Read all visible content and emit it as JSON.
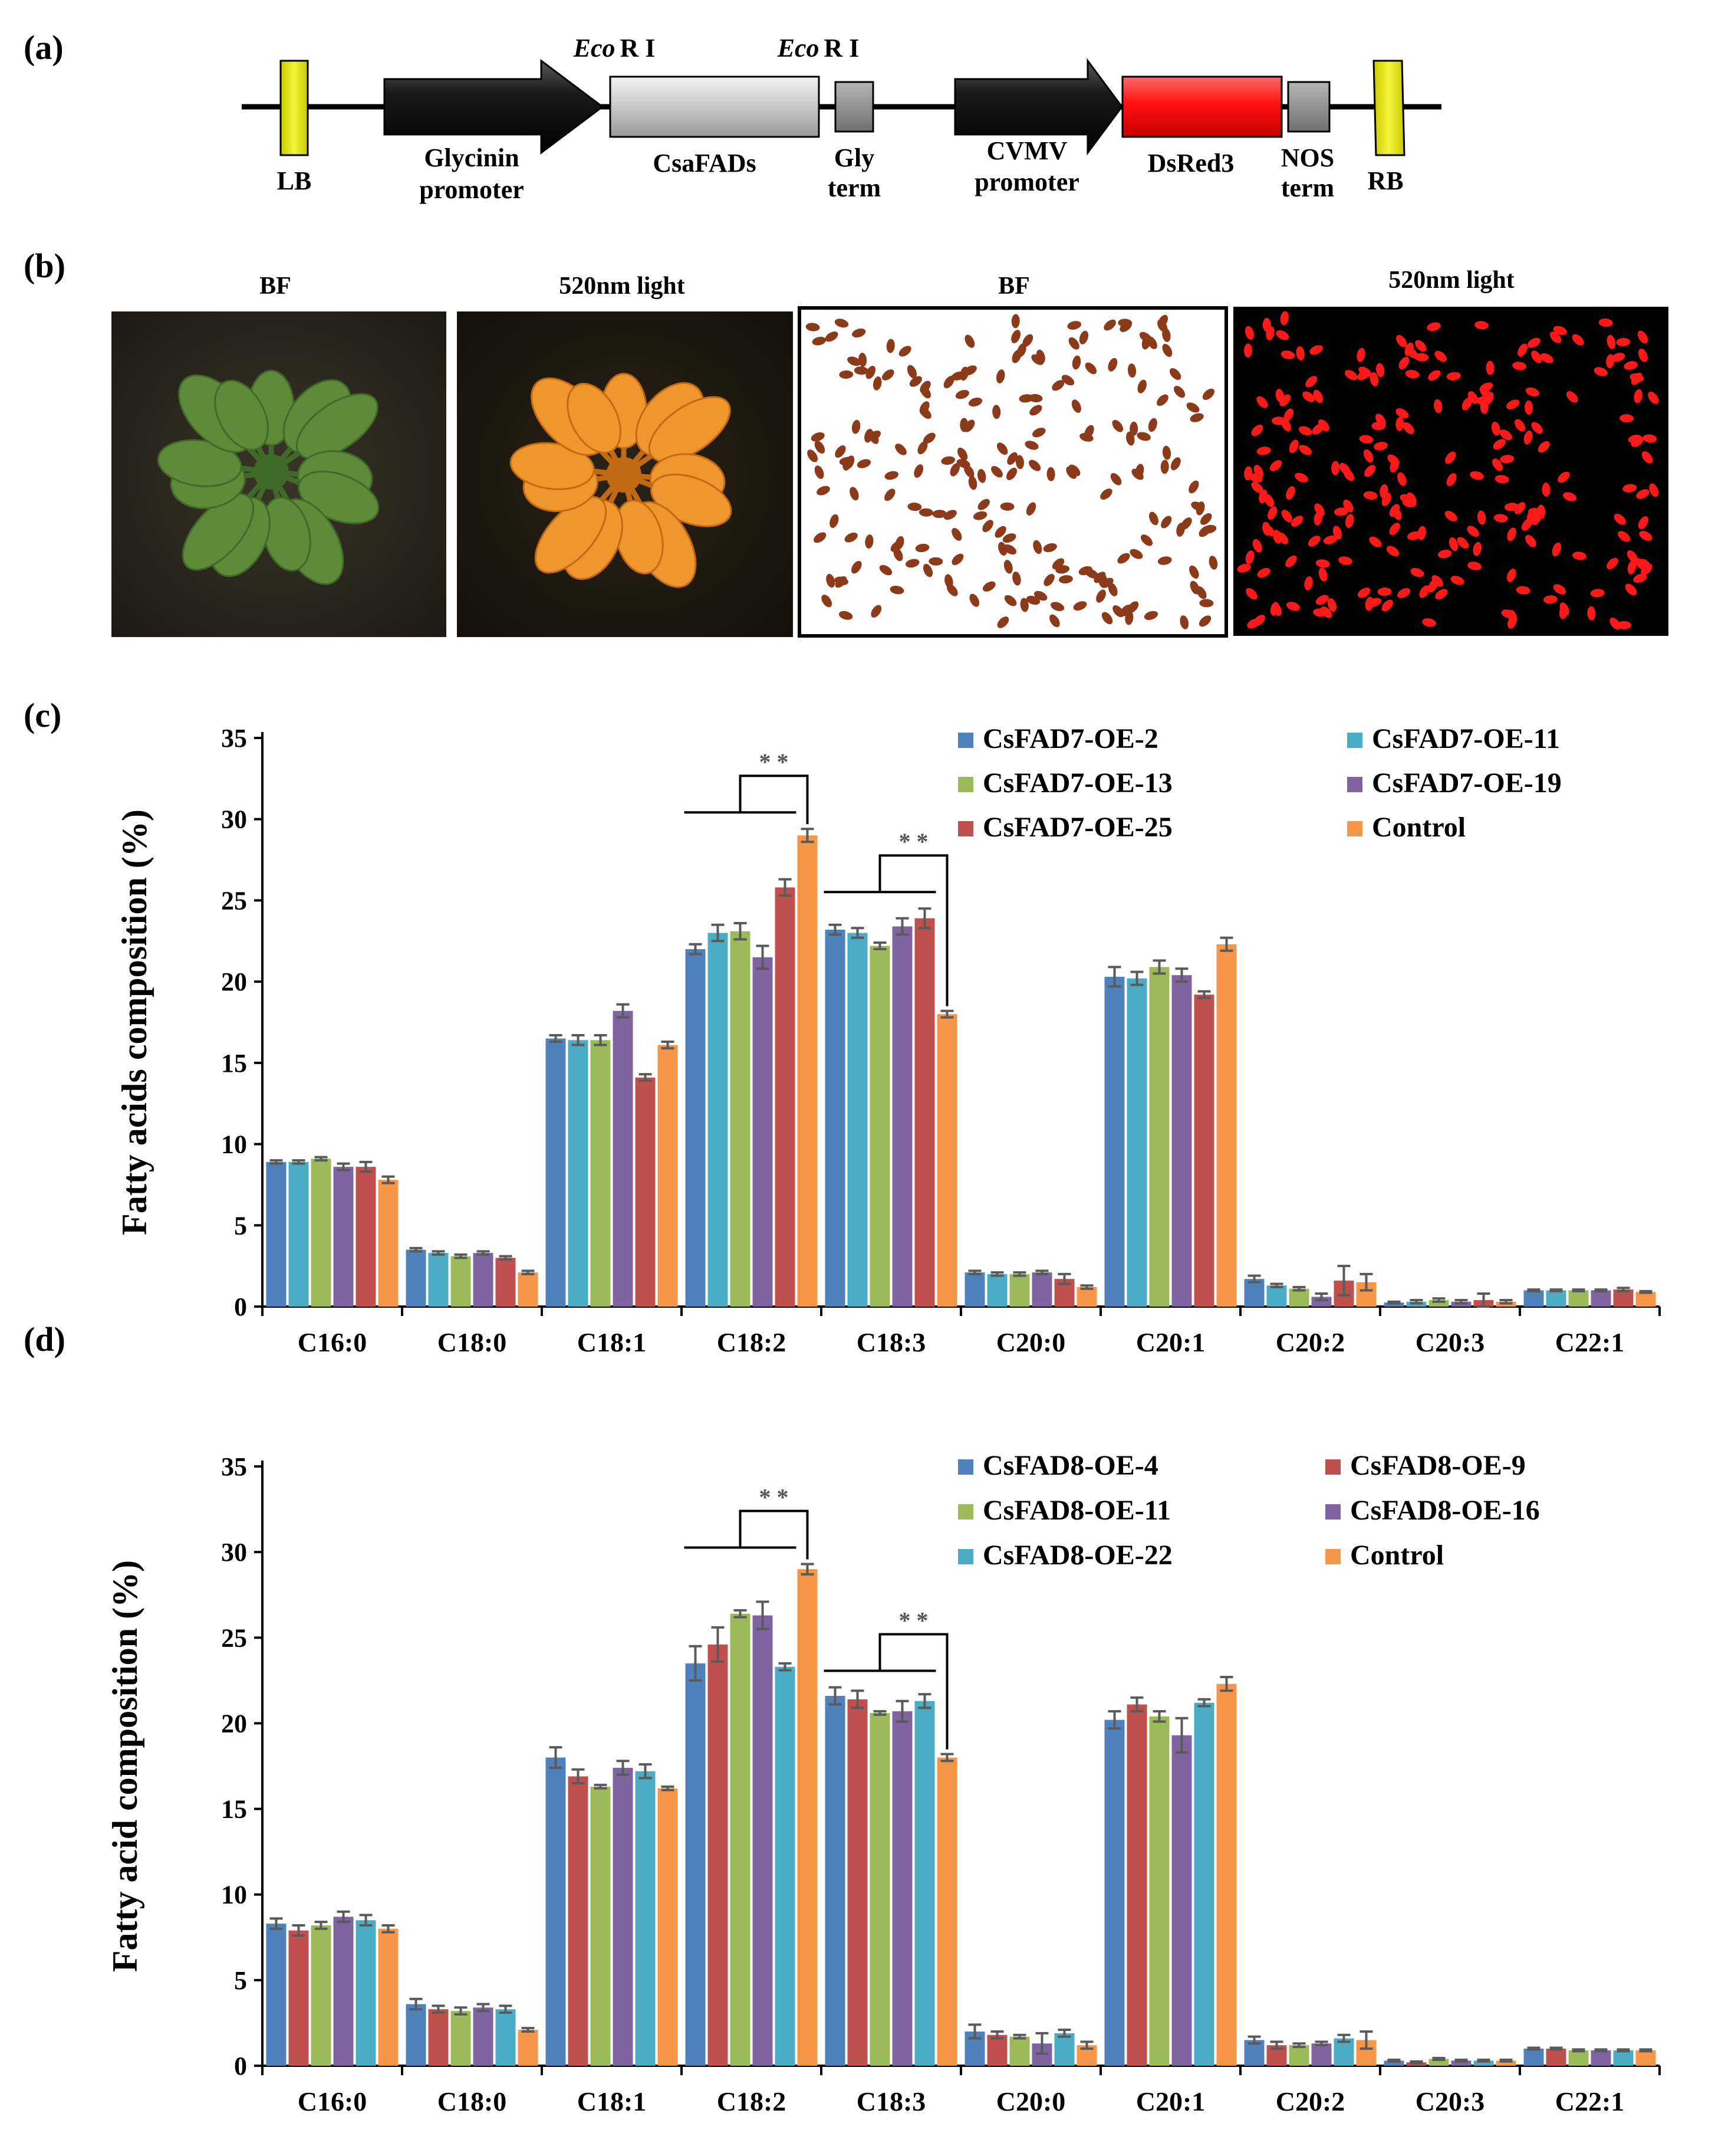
{
  "panel_labels": {
    "a": "(a)",
    "b": "(b)",
    "c": "(c)",
    "d": "(d)"
  },
  "construct": {
    "eco_italic": "Eco",
    "eco_rest": "R I",
    "elements": {
      "lb": "LB",
      "glycinin_l1": "Glycinin",
      "glycinin_l2": "promoter",
      "csafads": "CsaFADs",
      "gly_l1": "Gly",
      "gly_l2": "term",
      "cvmv_l1": "CVMV",
      "cvmv_l2": "promoter",
      "dsred3": "DsRed3",
      "nos_l1": "NOS",
      "nos_l2": "term",
      "rb": "RB"
    },
    "colors": {
      "border": "#e6e61a",
      "promoter": "#1a1a1a",
      "gene": "#cccccc",
      "terminator": "#8c8c8c",
      "reporter": "#ff1a1a"
    }
  },
  "photos": [
    {
      "caption": "BF",
      "subject": "rosette"
    },
    {
      "caption": "520nm light",
      "subject": "rosette"
    },
    {
      "caption": "BF",
      "subject": "seeds"
    },
    {
      "caption": "520nm light",
      "subject": "seeds"
    }
  ],
  "chart_data": [
    {
      "type": "bar",
      "panel": "(c)",
      "ylabel": "Fatty acids composition (%)",
      "ylim": [
        0,
        35
      ],
      "yticks": [
        0,
        5,
        10,
        15,
        20,
        25,
        30,
        35
      ],
      "categories": [
        "C16:0",
        "C18:0",
        "C18:1",
        "C18:2",
        "C18:3",
        "C20:0",
        "C20:1",
        "C20:2",
        "C20:3",
        "C22:1"
      ],
      "series": [
        {
          "name": "CsFAD7-OE-2",
          "color": "#4f81bd",
          "values": [
            8.9,
            3.5,
            16.5,
            22.0,
            23.2,
            2.1,
            20.3,
            1.7,
            0.25,
            1.0
          ],
          "errors": [
            0.1,
            0.1,
            0.2,
            0.3,
            0.3,
            0.1,
            0.6,
            0.2,
            0.05,
            0.05
          ]
        },
        {
          "name": "CsFAD7-OE-11",
          "color": "#4bacc6",
          "values": [
            8.9,
            3.3,
            16.4,
            23.0,
            23.0,
            2.0,
            20.2,
            1.3,
            0.3,
            1.0
          ],
          "errors": [
            0.1,
            0.1,
            0.3,
            0.5,
            0.3,
            0.1,
            0.4,
            0.1,
            0.1,
            0.05
          ]
        },
        {
          "name": "CsFAD7-OE-13",
          "color": "#9bbb59",
          "values": [
            9.1,
            3.1,
            16.4,
            23.1,
            22.2,
            2.0,
            20.9,
            1.1,
            0.4,
            1.0
          ],
          "errors": [
            0.1,
            0.1,
            0.3,
            0.5,
            0.2,
            0.1,
            0.4,
            0.1,
            0.1,
            0.05
          ]
        },
        {
          "name": "CsFAD7-OE-19",
          "color": "#8064a2",
          "values": [
            8.6,
            3.3,
            18.2,
            21.5,
            23.4,
            2.1,
            20.4,
            0.6,
            0.3,
            1.0
          ],
          "errors": [
            0.2,
            0.1,
            0.4,
            0.7,
            0.5,
            0.1,
            0.4,
            0.2,
            0.1,
            0.05
          ]
        },
        {
          "name": "CsFAD7-OE-25",
          "color": "#c0504d",
          "values": [
            8.6,
            3.0,
            14.1,
            25.8,
            23.9,
            1.7,
            19.2,
            1.6,
            0.4,
            1.05
          ],
          "errors": [
            0.3,
            0.1,
            0.2,
            0.5,
            0.6,
            0.3,
            0.2,
            0.9,
            0.4,
            0.1
          ]
        },
        {
          "name": "Control",
          "color": "#f79646",
          "values": [
            7.8,
            2.1,
            16.1,
            29.0,
            18.0,
            1.2,
            22.3,
            1.5,
            0.3,
            0.9
          ],
          "errors": [
            0.2,
            0.1,
            0.2,
            0.4,
            0.2,
            0.1,
            0.4,
            0.5,
            0.1,
            0.05
          ]
        }
      ],
      "significance": [
        {
          "category": "C18:2",
          "label": "* *"
        },
        {
          "category": "C18:3",
          "label": "* *"
        }
      ],
      "legend_position": "top-right"
    },
    {
      "type": "bar",
      "panel": "(d)",
      "ylabel": "Fatty acid composition (%)",
      "ylim": [
        0,
        35
      ],
      "yticks": [
        0,
        5,
        10,
        15,
        20,
        25,
        30,
        35
      ],
      "categories": [
        "C16:0",
        "C18:0",
        "C18:1",
        "C18:2",
        "C18:3",
        "C20:0",
        "C20:1",
        "C20:2",
        "C20:3",
        "C22:1"
      ],
      "series": [
        {
          "name": "CsFAD8-OE-4",
          "color": "#4f81bd",
          "values": [
            8.3,
            3.6,
            18.0,
            23.5,
            21.6,
            2.0,
            20.2,
            1.5,
            0.3,
            1.0
          ],
          "errors": [
            0.3,
            0.3,
            0.6,
            1.0,
            0.5,
            0.4,
            0.5,
            0.2,
            0.05,
            0.05
          ]
        },
        {
          "name": "CsFAD8-OE-9",
          "color": "#c0504d",
          "values": [
            7.9,
            3.3,
            16.9,
            24.6,
            21.4,
            1.8,
            21.1,
            1.2,
            0.2,
            1.0
          ],
          "errors": [
            0.3,
            0.2,
            0.4,
            1.0,
            0.5,
            0.2,
            0.4,
            0.2,
            0.05,
            0.05
          ]
        },
        {
          "name": "CsFAD8-OE-11",
          "color": "#9bbb59",
          "values": [
            8.2,
            3.2,
            16.3,
            26.4,
            20.6,
            1.7,
            20.4,
            1.2,
            0.4,
            0.9
          ],
          "errors": [
            0.2,
            0.2,
            0.1,
            0.2,
            0.1,
            0.1,
            0.3,
            0.1,
            0.05,
            0.05
          ]
        },
        {
          "name": "CsFAD8-OE-16",
          "color": "#8064a2",
          "values": [
            8.7,
            3.4,
            17.4,
            26.3,
            20.7,
            1.3,
            19.3,
            1.3,
            0.3,
            0.9
          ],
          "errors": [
            0.3,
            0.2,
            0.4,
            0.8,
            0.6,
            0.6,
            1.0,
            0.1,
            0.05,
            0.05
          ]
        },
        {
          "name": "CsFAD8-OE-22",
          "color": "#4bacc6",
          "values": [
            8.5,
            3.3,
            17.2,
            23.3,
            21.3,
            1.9,
            21.2,
            1.6,
            0.3,
            0.9
          ],
          "errors": [
            0.3,
            0.2,
            0.4,
            0.2,
            0.4,
            0.2,
            0.2,
            0.2,
            0.05,
            0.05
          ]
        },
        {
          "name": "Control",
          "color": "#f79646",
          "values": [
            8.0,
            2.1,
            16.2,
            29.0,
            18.0,
            1.2,
            22.3,
            1.5,
            0.3,
            0.9
          ],
          "errors": [
            0.2,
            0.1,
            0.1,
            0.3,
            0.2,
            0.2,
            0.4,
            0.5,
            0.05,
            0.05
          ]
        }
      ],
      "significance": [
        {
          "category": "C18:2",
          "label": "* *"
        },
        {
          "category": "C18:3",
          "label": "* *"
        }
      ],
      "legend_position": "top-right"
    }
  ]
}
